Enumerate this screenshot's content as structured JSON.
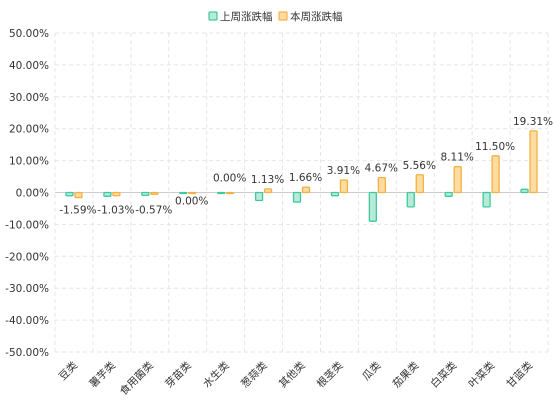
{
  "chart_data": {
    "type": "bar",
    "title": "",
    "xlabel": "",
    "ylabel": "",
    "ylim": [
      -50,
      50
    ],
    "y_tick_step": 10,
    "y_tick_format": "percent_2dp",
    "grid": "dashed horizontal and vertical",
    "legend_position": "top-center",
    "categories": [
      "豆类",
      "薯芋类",
      "食用菌类",
      "芽苗类",
      "水生类",
      "葱蒜类",
      "其他类",
      "根茎类",
      "瓜类",
      "茄果类",
      "白菜类",
      "叶菜类",
      "甘蓝类"
    ],
    "series": [
      {
        "name": "上周涨跌幅",
        "color": "#3ec9a0",
        "fill": "#b8ead8",
        "values": [
          -1.0,
          -1.2,
          -0.9,
          0.0,
          0.0,
          -2.5,
          -3.0,
          -1.0,
          -9.0,
          -4.5,
          -1.2,
          -4.5,
          1.0
        ]
      },
      {
        "name": "本周涨跌幅",
        "color": "#f5b040",
        "fill": "#fcdca3",
        "values": [
          -1.59,
          -1.03,
          -0.57,
          0.0,
          0.0,
          1.13,
          1.66,
          3.91,
          4.67,
          5.56,
          8.11,
          11.5,
          19.31
        ],
        "labels": [
          "-1.59%",
          "-1.03%",
          "-0.57%",
          "0.00%",
          "0.00%",
          "1.13%",
          "1.66%",
          "3.91%",
          "4.67%",
          "5.56%",
          "8.11%",
          "11.50%",
          "19.31%"
        ]
      }
    ]
  }
}
